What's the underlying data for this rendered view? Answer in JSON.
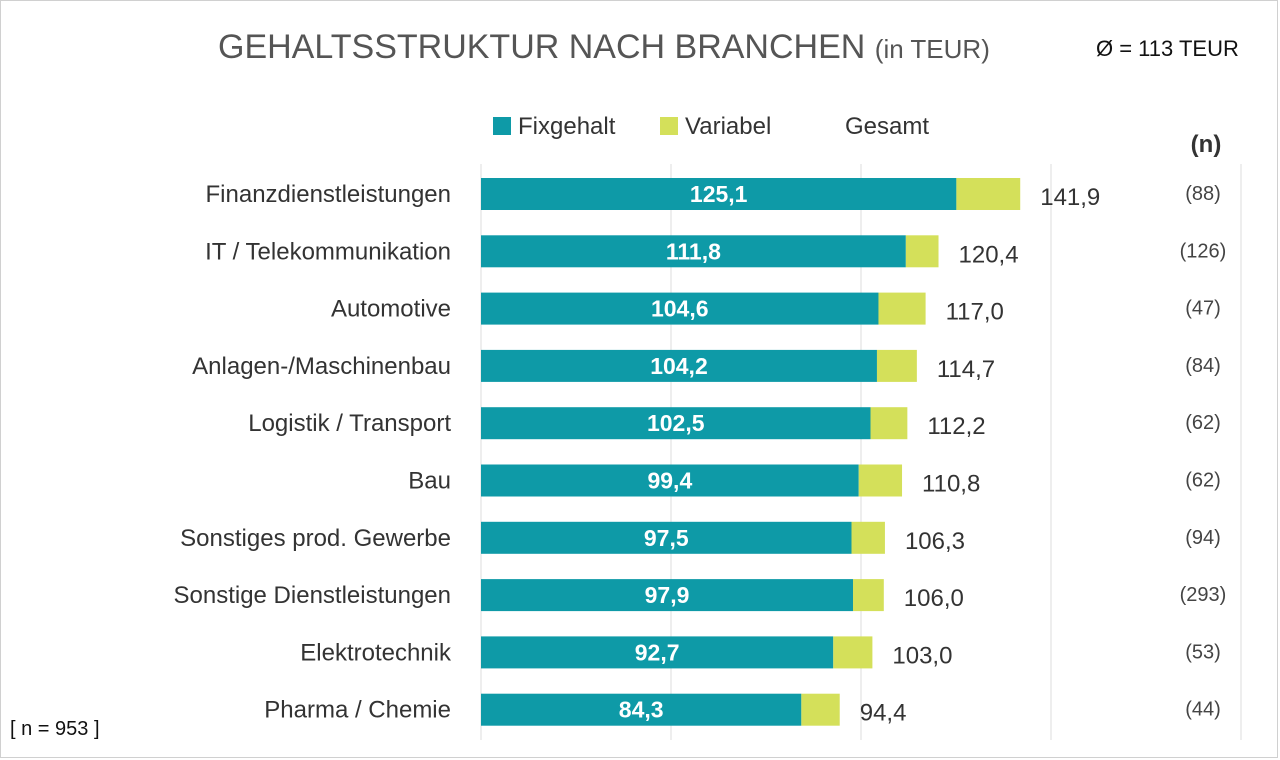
{
  "title_main": "GEHALTSSTRUKTUR NACH BRANCHEN",
  "title_unit": "(in TEUR)",
  "average_label": "Ø = 113 TEUR",
  "sample_label": "[ n = 953 ]",
  "chart_data": {
    "type": "bar",
    "orientation": "horizontal",
    "stacked": true,
    "title": "GEHALTSSTRUKTUR NACH BRANCHEN (in TEUR)",
    "categories": [
      "Finanzdienstleistungen",
      "IT / Telekommunikation",
      "Automotive",
      "Anlagen-/Maschinenbau",
      "Logistik / Transport",
      "Bau",
      "Sonstiges prod. Gewerbe",
      "Sonstige Dienstleistungen",
      "Elektrotechnik",
      "Pharma / Chemie"
    ],
    "series": [
      {
        "name": "Fixgehalt",
        "values": [
          125.1,
          111.8,
          104.6,
          104.2,
          102.5,
          99.4,
          97.5,
          97.9,
          92.7,
          84.3
        ],
        "color": "#0e9aa7"
      },
      {
        "name": "Variabel",
        "values": [
          16.8,
          8.6,
          12.4,
          10.5,
          9.7,
          11.4,
          8.8,
          8.1,
          10.3,
          10.1
        ],
        "color": "#d4e05a"
      }
    ],
    "fix_labels": [
      "125,1",
      "111,8",
      "104,6",
      "104,2",
      "102,5",
      "99,4",
      "97,5",
      "97,9",
      "92,7",
      "84,3"
    ],
    "totals": [
      141.9,
      120.4,
      117.0,
      114.7,
      112.2,
      110.8,
      106.3,
      106.0,
      103.0,
      94.4
    ],
    "total_labels": [
      "141,9",
      "120,4",
      "117,0",
      "114,7",
      "112,2",
      "110,8",
      "106,3",
      "106,0",
      "103,0",
      "94,4"
    ],
    "legend": [
      "Fixgehalt",
      "Variabel",
      "Gesamt"
    ],
    "n_header": "(n)",
    "n_values": [
      "(88)",
      "(126)",
      "(47)",
      "(84)",
      "(62)",
      "(62)",
      "(94)",
      "(293)",
      "(53)",
      "(44)"
    ],
    "xlim": [
      0,
      200
    ],
    "grid": true,
    "legend_position": "top"
  }
}
